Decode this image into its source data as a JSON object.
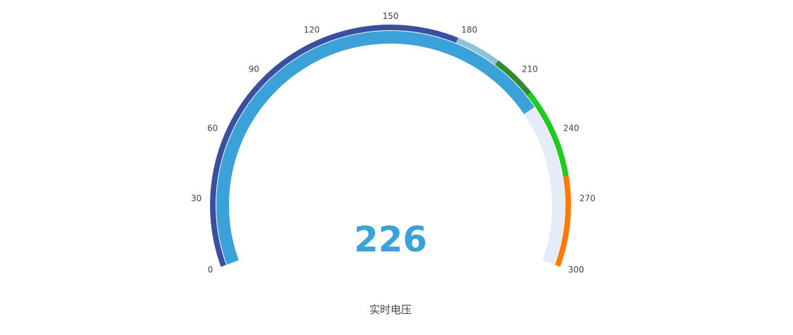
{
  "chart_data": {
    "type": "gauge",
    "title": "实时电压",
    "value": 226,
    "value_text": "226",
    "min": 0,
    "max": 300,
    "ticks": [
      "0",
      "30",
      "60",
      "90",
      "120",
      "150",
      "180",
      "210",
      "240",
      "270",
      "300"
    ],
    "progress_color": "#3aa1d9",
    "track_color": "#e6ebf8",
    "band_segments": [
      {
        "from": 0,
        "to": 180,
        "color": "#3a4fa0"
      },
      {
        "from": 180,
        "to": 200,
        "color": "#8ec1db"
      },
      {
        "from": 200,
        "to": 220,
        "color": "#2e8b2e"
      },
      {
        "from": 220,
        "to": 260,
        "color": "#1ecb1e"
      },
      {
        "from": 260,
        "to": 300,
        "color": "#ff7c00"
      }
    ]
  }
}
